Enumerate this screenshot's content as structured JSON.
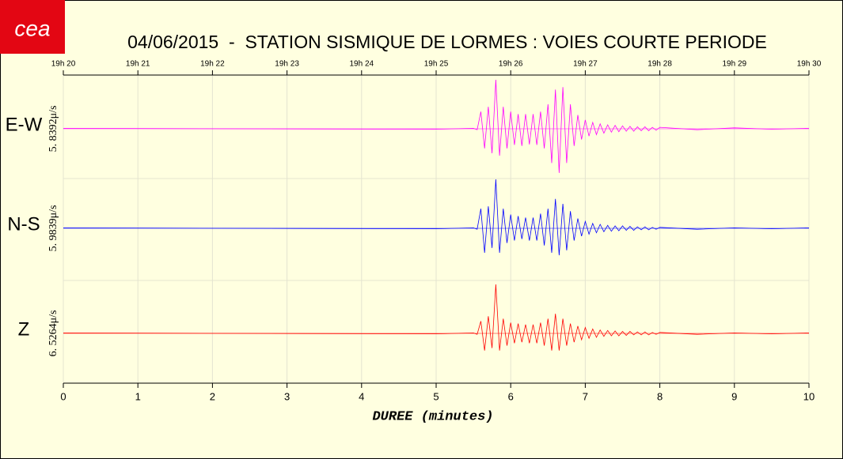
{
  "logo": "cea",
  "chart_data": {
    "type": "seismogram",
    "title": "04/06/2015  -  STATION SISMIQUE DE LORMES : VOIES COURTE PERIODE",
    "x_label": "DUREE (minutes)",
    "xlim": [
      0,
      10
    ],
    "xticks": [
      0,
      1,
      2,
      3,
      4,
      5,
      6,
      7,
      8,
      9,
      10
    ],
    "top_ticks": [
      {
        "value": 0,
        "label": "19h 20"
      },
      {
        "value": 1,
        "label": "19h 21"
      },
      {
        "value": 2,
        "label": "19h 22"
      },
      {
        "value": 3,
        "label": "19h 23"
      },
      {
        "value": 4,
        "label": "19h 24"
      },
      {
        "value": 5,
        "label": "19h 25"
      },
      {
        "value": 6,
        "label": "19h 26"
      },
      {
        "value": 7,
        "label": "19h 27"
      },
      {
        "value": 8,
        "label": "19h 28"
      },
      {
        "value": 9,
        "label": "19h 29"
      },
      {
        "value": 10,
        "label": "19h 30"
      }
    ],
    "ylim": [
      -1,
      1
    ],
    "grid": true,
    "x": [
      0,
      5,
      5.5,
      5.55,
      5.6,
      5.65,
      5.7,
      5.75,
      5.8,
      5.85,
      5.9,
      5.95,
      6,
      6.05,
      6.1,
      6.15,
      6.2,
      6.25,
      6.3,
      6.35,
      6.4,
      6.45,
      6.5,
      6.55,
      6.6,
      6.65,
      6.7,
      6.75,
      6.8,
      6.85,
      6.9,
      6.95,
      7,
      7.05,
      7.1,
      7.15,
      7.2,
      7.25,
      7.3,
      7.35,
      7.4,
      7.45,
      7.5,
      7.55,
      7.6,
      7.65,
      7.7,
      7.75,
      7.8,
      7.85,
      7.9,
      7.95,
      8,
      8.5,
      9,
      9.5,
      10
    ],
    "series": [
      {
        "name": "E-W",
        "scale_label": "5. 8392μ/s",
        "color": "#ff00ff",
        "values": [
          0.01,
          -0.01,
          0.01,
          -0.02,
          0.35,
          -0.4,
          0.45,
          -0.5,
          1.0,
          -0.55,
          0.45,
          -0.4,
          0.35,
          -0.33,
          0.3,
          -0.35,
          0.3,
          -0.32,
          0.3,
          -0.33,
          0.35,
          -0.4,
          0.5,
          -0.7,
          0.8,
          -0.9,
          0.85,
          -0.7,
          0.5,
          -0.35,
          0.28,
          -0.22,
          0.18,
          -0.15,
          0.13,
          -0.12,
          0.1,
          -0.09,
          0.08,
          -0.07,
          0.07,
          -0.06,
          0.06,
          -0.05,
          0.05,
          -0.05,
          0.04,
          -0.04,
          0.04,
          -0.04,
          0.03,
          -0.03,
          0.03,
          -0.02,
          0.02,
          -0.01,
          0.01
        ]
      },
      {
        "name": "N-S",
        "scale_label": "5. 9839μ/s",
        "color": "#0000ff",
        "values": [
          0.01,
          -0.01,
          0.01,
          -0.02,
          0.4,
          -0.5,
          0.45,
          -0.4,
          1.0,
          -0.5,
          0.4,
          -0.3,
          0.28,
          -0.25,
          0.25,
          -0.22,
          0.22,
          -0.25,
          0.22,
          -0.25,
          0.3,
          -0.35,
          0.4,
          -0.5,
          0.6,
          -0.55,
          0.5,
          -0.45,
          0.35,
          -0.25,
          0.2,
          -0.16,
          0.14,
          -0.12,
          0.1,
          -0.09,
          0.08,
          -0.07,
          0.06,
          -0.06,
          0.05,
          -0.05,
          0.05,
          -0.04,
          0.04,
          -0.04,
          0.03,
          -0.03,
          0.03,
          -0.03,
          0.02,
          -0.02,
          0.02,
          -0.02,
          0.01,
          -0.01,
          0.01
        ]
      },
      {
        "name": "Z",
        "scale_label": "6. 5264μ/s",
        "color": "#ff0000",
        "values": [
          0.01,
          -0.01,
          0.01,
          -0.02,
          0.25,
          -0.35,
          0.35,
          -0.3,
          1.0,
          -0.35,
          0.3,
          -0.25,
          0.22,
          -0.2,
          0.2,
          -0.18,
          0.18,
          -0.2,
          0.18,
          -0.2,
          0.22,
          -0.25,
          0.3,
          -0.35,
          0.4,
          -0.35,
          0.3,
          -0.25,
          0.2,
          -0.18,
          0.15,
          -0.13,
          0.12,
          -0.1,
          0.09,
          -0.08,
          0.07,
          -0.06,
          0.06,
          -0.05,
          0.05,
          -0.05,
          0.04,
          -0.04,
          0.04,
          -0.03,
          0.03,
          -0.03,
          0.03,
          -0.03,
          0.02,
          -0.02,
          0.02,
          -0.02,
          0.01,
          -0.01,
          0.01
        ]
      }
    ]
  }
}
